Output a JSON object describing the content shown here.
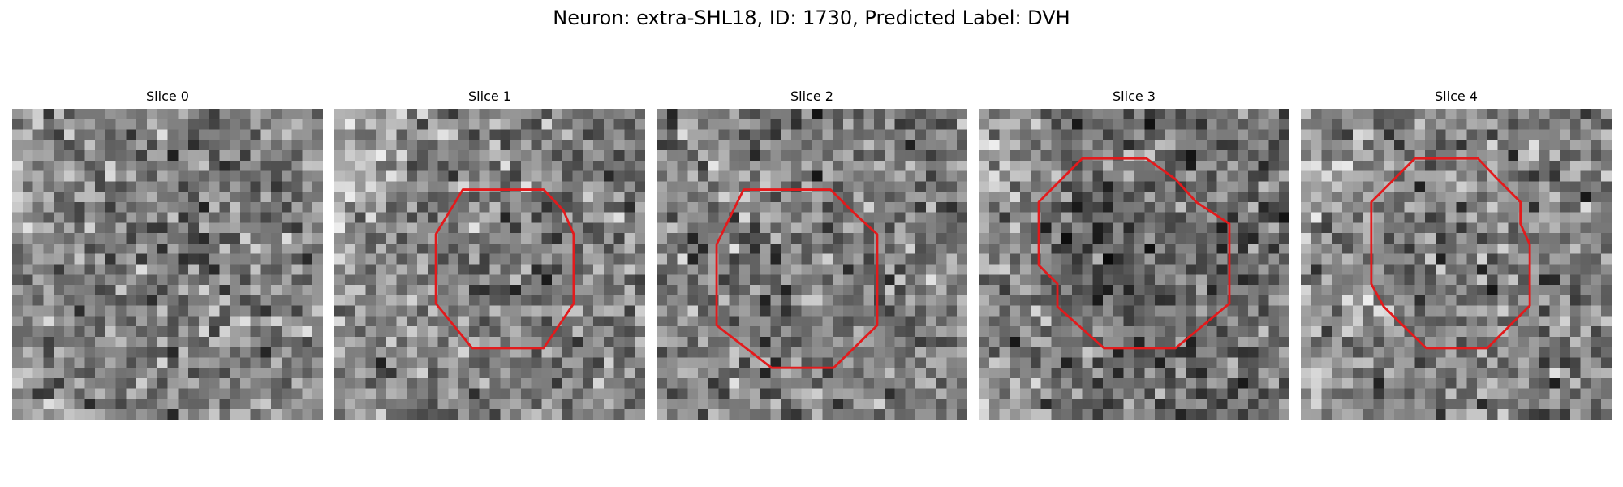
{
  "figure": {
    "title": "Neuron: extra-SHL18, ID: 1730, Predicted Label: DVH"
  },
  "panels": [
    {
      "title": "Slice 0",
      "has_contour": false,
      "contour_color": "#e31a1c"
    },
    {
      "title": "Slice 1",
      "has_contour": true,
      "contour_color": "#e31a1c"
    },
    {
      "title": "Slice 2",
      "has_contour": true,
      "contour_color": "#e31a1c"
    },
    {
      "title": "Slice 3",
      "has_contour": true,
      "contour_color": "#e31a1c"
    },
    {
      "title": "Slice 4",
      "has_contour": true,
      "contour_color": "#e31a1c"
    }
  ]
}
